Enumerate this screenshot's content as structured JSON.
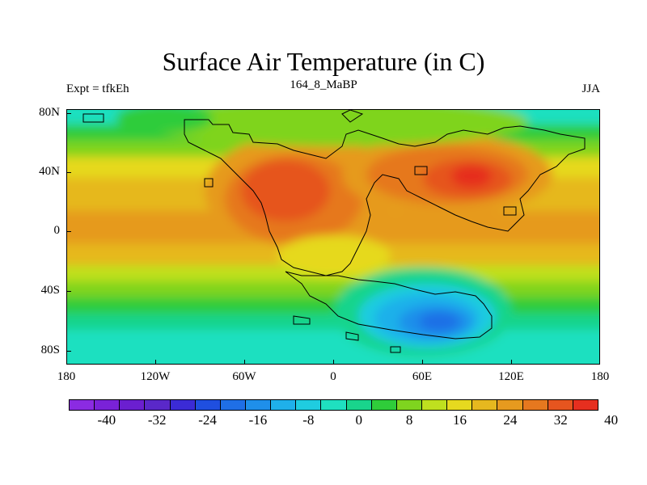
{
  "title": "Surface Air Temperature (in C)",
  "subtitle_left": "Expt = tfkEh",
  "subtitle_center": "164_8_MaBP",
  "subtitle_right": "JJA",
  "axes": {
    "y_ticks": [
      "80N",
      "40N",
      "0",
      "40S",
      "80S"
    ],
    "y_values": [
      80,
      40,
      0,
      -40,
      -80
    ],
    "x_ticks": [
      "180",
      "120W",
      "60W",
      "0",
      "60E",
      "120E",
      "180"
    ],
    "x_values": [
      -180,
      -120,
      -60,
      0,
      60,
      120,
      180
    ],
    "lon_range": [
      -180,
      180
    ],
    "lat_range": [
      -90,
      90
    ]
  },
  "colorbar": {
    "colors": [
      "#8b2be2",
      "#7a22d8",
      "#6b1fd0",
      "#5a28c9",
      "#3b2bd6",
      "#1f4fe0",
      "#1f6fe6",
      "#1f8fea",
      "#1fb0ea",
      "#1fcce0",
      "#1fe0c0",
      "#19d48c",
      "#2fcc3a",
      "#7fd41f",
      "#bfe01f",
      "#e6d91f",
      "#e6b81f",
      "#e69a1f",
      "#e6781f",
      "#e6551f",
      "#e62f1f"
    ],
    "labels": [
      "-40",
      "-32",
      "-24",
      "-16",
      "-8",
      "0",
      "8",
      "16",
      "24",
      "32",
      "40"
    ],
    "label_values": [
      -40,
      -32,
      -24,
      -16,
      -8,
      0,
      8,
      16,
      24,
      32,
      40
    ]
  }
}
